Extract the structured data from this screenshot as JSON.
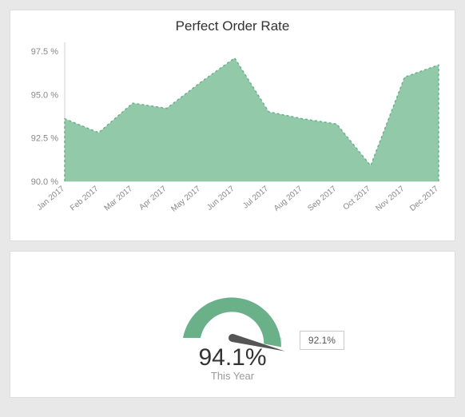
{
  "top": {
    "title": "Perfect Order Rate",
    "chart": {
      "type": "area",
      "x_labels": [
        "Jan 2017",
        "Feb 2017",
        "Mar 2017",
        "Apr 2017",
        "May 2017",
        "Jun 2017",
        "Jul 2017",
        "Aug 2017",
        "Sep 2017",
        "Oct 2017",
        "Nov 2017",
        "Dec 2017"
      ],
      "values": [
        93.6,
        92.8,
        94.5,
        94.2,
        95.7,
        97.1,
        94.0,
        93.6,
        93.3,
        90.9,
        96.0,
        96.7
      ],
      "y_ticks": [
        90.0,
        92.5,
        95.0,
        97.5
      ],
      "y_tick_suffix": " %",
      "ylim": [
        90.0,
        98.0
      ],
      "fill_color": "#92c9a9",
      "stroke_color": "#6ab088",
      "stroke_dasharray": "3 3",
      "stroke_width": 1.5,
      "axis_color": "#d0d0d0",
      "tick_font_color": "#888888",
      "tick_font_size_y": 11,
      "tick_font_size_x": 10,
      "title_font_size": 17,
      "title_color": "#333333",
      "background_color": "#ffffff",
      "x_label_rotation": -40
    }
  },
  "bottom": {
    "gauge": {
      "type": "gauge",
      "value": 94.1,
      "value_display": "94.1%",
      "label": "This Year",
      "target": 92.1,
      "target_display": "92.1%",
      "min": 0,
      "max": 100,
      "arc_color": "#6ab088",
      "arc_bg_color": "#e3e3e3",
      "needle_color": "#555555",
      "value_font_size": 30,
      "value_color": "#333333",
      "label_font_size": 13,
      "label_color": "#999999",
      "arc_thickness": 22,
      "radius_outer": 62
    }
  },
  "page": {
    "outer_background": "#e8e8e8",
    "card_background": "#ffffff",
    "card_border": "#dddddd"
  }
}
